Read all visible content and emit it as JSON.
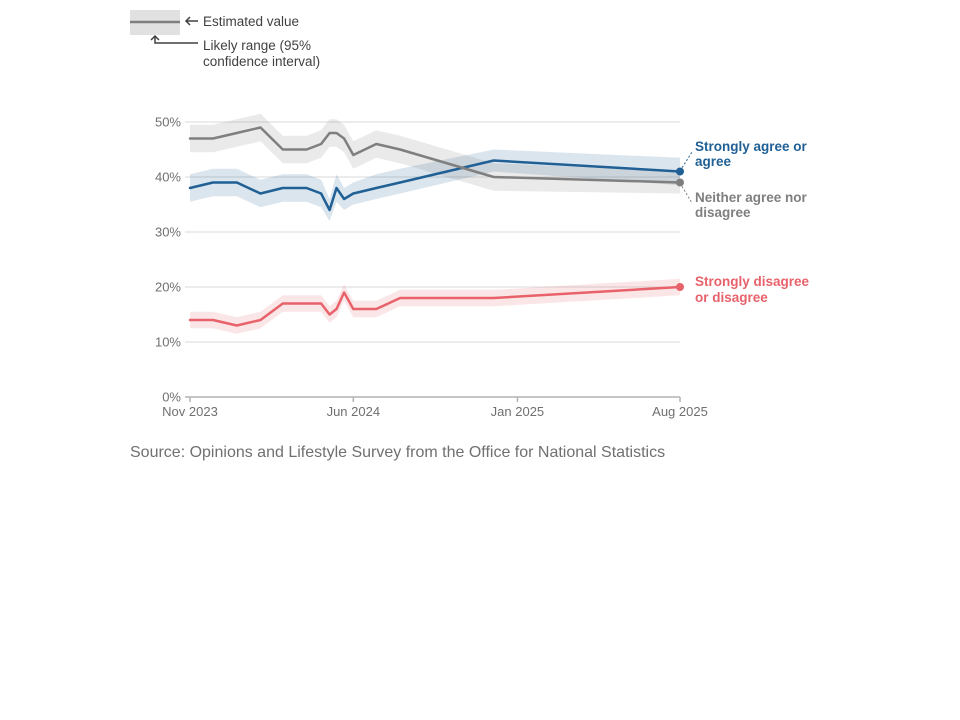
{
  "key": {
    "estimate_label": "Estimated value",
    "range_label_line1": "Likely range (95%",
    "range_label_line2": "confidence interval)"
  },
  "source": "Source: Opinions and Lifestyle Survey from the Office for National Statistics",
  "colors": {
    "agree": "#206095",
    "neither": "#7f7f7f",
    "disagree": "#e8626b",
    "grid": "#d9d9d9",
    "axis": "#b3b3b3"
  },
  "chart_data": {
    "type": "line",
    "title": "",
    "xlabel": "",
    "ylabel": "",
    "ylim": [
      0,
      50
    ],
    "yticks": [
      0,
      10,
      20,
      30,
      40,
      50
    ],
    "ytick_labels": [
      "0%",
      "10%",
      "20%",
      "30%",
      "40%",
      "50%"
    ],
    "xlim": [
      "2023-11-01",
      "2025-08-01"
    ],
    "xticks": [
      {
        "date": "2023-11-01",
        "label": "Nov 2023"
      },
      {
        "date": "2024-06-01",
        "label": "Jun 2024"
      },
      {
        "date": "2025-01-01",
        "label": "Jan 2025"
      },
      {
        "date": "2025-08-01",
        "label": "Aug 2025"
      }
    ],
    "grid": true,
    "x": [
      "2023-11-01",
      "2023-12-01",
      "2024-01-01",
      "2024-02-01",
      "2024-03-01",
      "2024-04-01",
      "2024-04-20",
      "2024-05-01",
      "2024-05-10",
      "2024-05-20",
      "2024-06-01",
      "2024-07-01",
      "2024-08-01",
      "2024-12-01",
      "2025-08-01"
    ],
    "series": [
      {
        "name": "Strongly agree or agree",
        "label_line1": "Strongly agree or",
        "label_line2": "agree",
        "color_key": "agree",
        "values": [
          38,
          39,
          39,
          37,
          38,
          38,
          37,
          34,
          38,
          36,
          37,
          38,
          39,
          43,
          41
        ],
        "lower": [
          35.5,
          36.5,
          36.5,
          34.5,
          35.5,
          35.5,
          34.5,
          32,
          35.5,
          34,
          35,
          36,
          37,
          41,
          38.5
        ],
        "upper": [
          40.5,
          41.5,
          41.5,
          39.5,
          40.5,
          40.5,
          39.5,
          36,
          40.5,
          38,
          39,
          40.5,
          41.5,
          45,
          43.5
        ]
      },
      {
        "name": "Neither agree nor disagree",
        "label_line1": "Neither agree nor",
        "label_line2": "disagree",
        "color_key": "neither",
        "values": [
          47,
          47,
          48,
          49,
          45,
          45,
          46,
          48,
          48,
          47,
          44,
          46,
          45,
          40,
          39
        ],
        "lower": [
          44.5,
          44.5,
          45.5,
          46.5,
          42.5,
          42.5,
          43.5,
          45.5,
          45.5,
          44.5,
          41.5,
          43.5,
          42.5,
          37.5,
          37
        ],
        "upper": [
          49.5,
          49.5,
          50.5,
          51.5,
          47.5,
          47.5,
          48.5,
          50.5,
          50.5,
          49.5,
          46.5,
          48.5,
          47.5,
          42.5,
          41
        ]
      },
      {
        "name": "Strongly disagree or disagree",
        "label_line1": "Strongly disagree",
        "label_line2": "or disagree",
        "color_key": "disagree",
        "values": [
          14,
          14,
          13,
          14,
          17,
          17,
          17,
          15,
          16,
          19,
          16,
          16,
          18,
          18,
          20
        ],
        "lower": [
          12.5,
          12.5,
          11.5,
          12.5,
          15.5,
          15.5,
          15.5,
          13.5,
          14.5,
          17.5,
          14.5,
          14.5,
          16.5,
          16.5,
          18.5
        ],
        "upper": [
          15.5,
          15.5,
          14.5,
          15.5,
          18.5,
          18.5,
          18.5,
          16.5,
          17.5,
          20.5,
          17.5,
          17.5,
          19.5,
          19.5,
          21.5
        ]
      }
    ]
  }
}
